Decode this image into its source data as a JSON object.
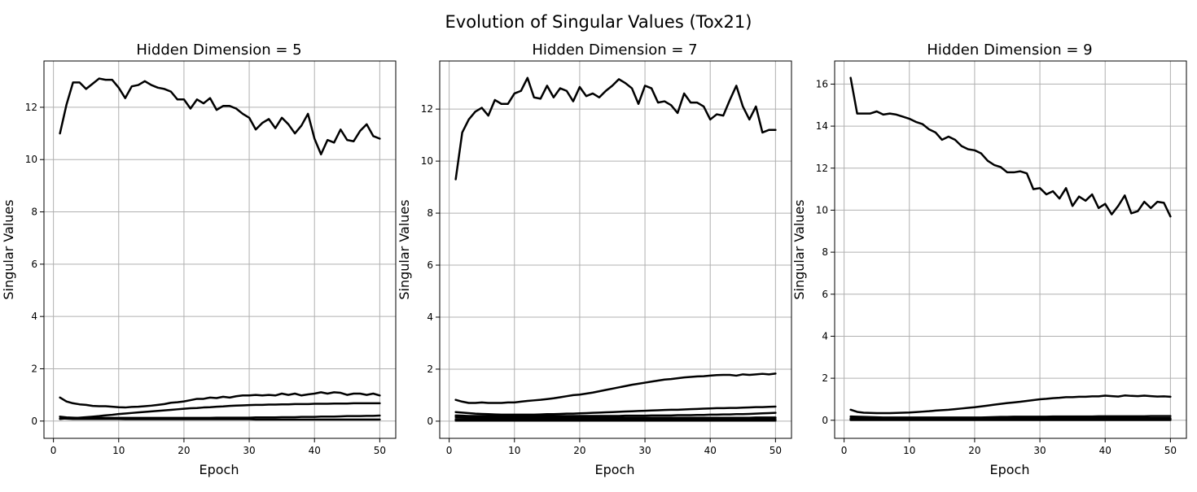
{
  "figure": {
    "title": "Evolution of Singular Values (Tox21)"
  },
  "chart_data": [
    {
      "type": "line",
      "title": "Hidden Dimension = 5",
      "xlabel": "Epoch",
      "ylabel": "Singular Values",
      "xlim": [
        -1.45,
        52.45
      ],
      "ylim": [
        -0.66,
        13.77
      ],
      "xticks": [
        0,
        10,
        20,
        30,
        40,
        50
      ],
      "yticks": [
        0,
        2,
        4,
        6,
        8,
        10,
        12
      ],
      "grid": true,
      "line_color": "#000000",
      "series": [
        {
          "values": [
            11.0,
            12.1,
            12.95,
            12.95,
            12.7,
            12.9,
            13.1,
            13.05,
            13.05,
            12.75,
            12.35,
            12.8,
            12.85,
            13.0,
            12.85,
            12.75,
            12.7,
            12.6,
            12.3,
            12.3,
            11.95,
            12.3,
            12.15,
            12.35,
            11.9,
            12.05,
            12.05,
            11.95,
            11.75,
            11.6,
            11.15,
            11.4,
            11.55,
            11.2,
            11.6,
            11.35,
            11.0,
            11.3,
            11.75,
            10.8,
            10.2,
            10.75,
            10.65,
            11.15,
            10.75,
            10.7,
            11.1,
            11.35,
            10.9,
            10.8
          ]
        },
        {
          "values": [
            0.9,
            0.75,
            0.68,
            0.64,
            0.62,
            0.58,
            0.57,
            0.57,
            0.55,
            0.53,
            0.52,
            0.54,
            0.55,
            0.57,
            0.59,
            0.62,
            0.65,
            0.7,
            0.72,
            0.75,
            0.8,
            0.85,
            0.85,
            0.9,
            0.88,
            0.93,
            0.9,
            0.95,
            0.98,
            0.98,
            1.0,
            0.98,
            1.0,
            0.98,
            1.05,
            1.0,
            1.05,
            0.98,
            1.02,
            1.05,
            1.1,
            1.05,
            1.1,
            1.08,
            1.0,
            1.05,
            1.05,
            1.0,
            1.05,
            0.98
          ]
        },
        {
          "values": [
            0.08,
            0.1,
            0.11,
            0.13,
            0.15,
            0.17,
            0.19,
            0.22,
            0.24,
            0.27,
            0.29,
            0.31,
            0.33,
            0.35,
            0.37,
            0.39,
            0.41,
            0.43,
            0.45,
            0.47,
            0.49,
            0.5,
            0.52,
            0.53,
            0.55,
            0.56,
            0.58,
            0.59,
            0.6,
            0.61,
            0.62,
            0.62,
            0.63,
            0.63,
            0.64,
            0.64,
            0.65,
            0.65,
            0.65,
            0.66,
            0.66,
            0.66,
            0.67,
            0.67,
            0.67,
            0.68,
            0.68,
            0.68,
            0.68,
            0.68
          ]
        },
        {
          "values": [
            0.17,
            0.14,
            0.13,
            0.12,
            0.12,
            0.12,
            0.12,
            0.12,
            0.12,
            0.12,
            0.12,
            0.12,
            0.12,
            0.12,
            0.12,
            0.12,
            0.12,
            0.12,
            0.12,
            0.12,
            0.12,
            0.12,
            0.12,
            0.12,
            0.13,
            0.13,
            0.13,
            0.13,
            0.13,
            0.13,
            0.14,
            0.14,
            0.14,
            0.14,
            0.15,
            0.15,
            0.15,
            0.16,
            0.16,
            0.16,
            0.17,
            0.17,
            0.17,
            0.18,
            0.19,
            0.19,
            0.19,
            0.2,
            0.2,
            0.21
          ]
        },
        {
          "values": [
            0.1,
            0.09,
            0.08,
            0.08,
            0.08,
            0.08,
            0.08,
            0.08,
            0.08,
            0.08,
            0.07,
            0.07,
            0.07,
            0.07,
            0.07,
            0.07,
            0.07,
            0.07,
            0.07,
            0.07,
            0.07,
            0.07,
            0.07,
            0.07,
            0.07,
            0.07,
            0.07,
            0.07,
            0.07,
            0.07,
            0.06,
            0.06,
            0.06,
            0.06,
            0.06,
            0.06,
            0.06,
            0.06,
            0.06,
            0.06,
            0.06,
            0.06,
            0.06,
            0.06,
            0.06,
            0.06,
            0.06,
            0.06,
            0.06,
            0.06
          ]
        }
      ]
    },
    {
      "type": "line",
      "title": "Hidden Dimension = 7",
      "xlabel": "Epoch",
      "ylabel": "Singular Values",
      "xlim": [
        -1.45,
        52.45
      ],
      "ylim": [
        -0.66,
        13.85
      ],
      "xticks": [
        0,
        10,
        20,
        30,
        40,
        50
      ],
      "yticks": [
        0,
        2,
        4,
        6,
        8,
        10,
        12
      ],
      "grid": true,
      "line_color": "#000000",
      "series": [
        {
          "values": [
            9.3,
            11.1,
            11.6,
            11.9,
            12.05,
            11.75,
            12.35,
            12.2,
            12.2,
            12.6,
            12.7,
            13.2,
            12.45,
            12.4,
            12.9,
            12.45,
            12.8,
            12.7,
            12.3,
            12.85,
            12.5,
            12.6,
            12.45,
            12.7,
            12.9,
            13.15,
            13.0,
            12.8,
            12.2,
            12.9,
            12.8,
            12.25,
            12.3,
            12.15,
            11.85,
            12.6,
            12.25,
            12.25,
            12.1,
            11.6,
            11.8,
            11.75,
            12.35,
            12.9,
            12.1,
            11.6,
            12.1,
            11.1,
            11.2,
            11.2
          ]
        },
        {
          "values": [
            0.82,
            0.75,
            0.7,
            0.7,
            0.72,
            0.7,
            0.7,
            0.7,
            0.72,
            0.72,
            0.75,
            0.78,
            0.8,
            0.82,
            0.85,
            0.88,
            0.92,
            0.96,
            1.0,
            1.02,
            1.06,
            1.1,
            1.15,
            1.2,
            1.25,
            1.3,
            1.35,
            1.4,
            1.44,
            1.48,
            1.52,
            1.56,
            1.6,
            1.62,
            1.65,
            1.68,
            1.7,
            1.72,
            1.73,
            1.75,
            1.77,
            1.78,
            1.78,
            1.75,
            1.8,
            1.78,
            1.8,
            1.82,
            1.8,
            1.83
          ]
        },
        {
          "values": [
            0.35,
            0.33,
            0.31,
            0.29,
            0.28,
            0.27,
            0.26,
            0.25,
            0.25,
            0.25,
            0.25,
            0.25,
            0.25,
            0.26,
            0.27,
            0.27,
            0.28,
            0.29,
            0.29,
            0.3,
            0.31,
            0.32,
            0.33,
            0.34,
            0.35,
            0.36,
            0.37,
            0.38,
            0.39,
            0.4,
            0.41,
            0.42,
            0.43,
            0.44,
            0.44,
            0.45,
            0.46,
            0.47,
            0.48,
            0.49,
            0.5,
            0.5,
            0.51,
            0.51,
            0.52,
            0.53,
            0.54,
            0.54,
            0.55,
            0.56
          ]
        },
        {
          "values": [
            0.22,
            0.21,
            0.2,
            0.2,
            0.2,
            0.2,
            0.2,
            0.2,
            0.2,
            0.2,
            0.2,
            0.2,
            0.2,
            0.2,
            0.2,
            0.2,
            0.2,
            0.2,
            0.2,
            0.2,
            0.2,
            0.2,
            0.2,
            0.2,
            0.2,
            0.2,
            0.21,
            0.21,
            0.21,
            0.21,
            0.22,
            0.22,
            0.22,
            0.22,
            0.23,
            0.23,
            0.23,
            0.24,
            0.24,
            0.25,
            0.25,
            0.26,
            0.26,
            0.27,
            0.27,
            0.28,
            0.29,
            0.3,
            0.31,
            0.32
          ]
        },
        {
          "values": [
            0.16,
            0.15,
            0.14,
            0.13,
            0.13,
            0.13,
            0.13,
            0.13,
            0.13,
            0.13,
            0.13,
            0.13,
            0.13,
            0.13,
            0.13,
            0.13,
            0.13,
            0.13,
            0.13,
            0.13,
            0.13,
            0.13,
            0.13,
            0.13,
            0.13,
            0.13,
            0.13,
            0.13,
            0.13,
            0.13,
            0.13,
            0.13,
            0.13,
            0.13,
            0.13,
            0.13,
            0.13,
            0.13,
            0.13,
            0.13,
            0.13,
            0.13,
            0.13,
            0.13,
            0.13,
            0.13,
            0.14,
            0.14,
            0.14,
            0.14
          ]
        },
        {
          "values": [
            0.08,
            0.08,
            0.08,
            0.08,
            0.08,
            0.08,
            0.08,
            0.08,
            0.08,
            0.08,
            0.08,
            0.08,
            0.08,
            0.08,
            0.08,
            0.08,
            0.08,
            0.08,
            0.08,
            0.08,
            0.08,
            0.08,
            0.08,
            0.08,
            0.08,
            0.08,
            0.08,
            0.08,
            0.08,
            0.08,
            0.08,
            0.08,
            0.08,
            0.08,
            0.08,
            0.08,
            0.08,
            0.08,
            0.08,
            0.08,
            0.08,
            0.08,
            0.08,
            0.08,
            0.08,
            0.08,
            0.08,
            0.08,
            0.08,
            0.08
          ]
        },
        {
          "values": [
            0.02,
            0.02,
            0.02,
            0.02,
            0.02,
            0.02,
            0.02,
            0.02,
            0.02,
            0.02,
            0.02,
            0.02,
            0.02,
            0.02,
            0.02,
            0.02,
            0.02,
            0.02,
            0.02,
            0.02,
            0.02,
            0.02,
            0.02,
            0.02,
            0.02,
            0.02,
            0.02,
            0.02,
            0.02,
            0.02,
            0.02,
            0.02,
            0.02,
            0.02,
            0.02,
            0.02,
            0.02,
            0.02,
            0.02,
            0.02,
            0.02,
            0.02,
            0.02,
            0.02,
            0.02,
            0.02,
            0.02,
            0.02,
            0.02,
            0.02
          ]
        }
      ]
    },
    {
      "type": "line",
      "title": "Hidden Dimension = 9",
      "xlabel": "Epoch",
      "ylabel": "Singular Values",
      "xlim": [
        -1.45,
        52.45
      ],
      "ylim": [
        -0.86,
        17.1
      ],
      "xticks": [
        0,
        10,
        20,
        30,
        40,
        50
      ],
      "yticks": [
        0,
        2,
        4,
        6,
        8,
        10,
        12,
        14,
        16
      ],
      "grid": true,
      "line_color": "#000000",
      "series": [
        {
          "values": [
            16.3,
            14.6,
            14.6,
            14.6,
            14.7,
            14.55,
            14.6,
            14.55,
            14.45,
            14.35,
            14.2,
            14.1,
            13.85,
            13.7,
            13.35,
            13.5,
            13.35,
            13.05,
            12.9,
            12.85,
            12.7,
            12.35,
            12.15,
            12.05,
            11.8,
            11.8,
            11.85,
            11.75,
            11.0,
            11.05,
            10.75,
            10.9,
            10.55,
            11.05,
            10.2,
            10.65,
            10.45,
            10.75,
            10.1,
            10.3,
            9.8,
            10.2,
            10.7,
            9.85,
            9.95,
            10.4,
            10.1,
            10.4,
            10.35,
            9.7
          ]
        },
        {
          "values": [
            0.5,
            0.4,
            0.36,
            0.35,
            0.34,
            0.34,
            0.34,
            0.35,
            0.36,
            0.37,
            0.39,
            0.41,
            0.43,
            0.46,
            0.48,
            0.5,
            0.53,
            0.56,
            0.59,
            0.62,
            0.66,
            0.7,
            0.74,
            0.78,
            0.82,
            0.85,
            0.88,
            0.92,
            0.96,
            1.0,
            1.02,
            1.05,
            1.07,
            1.1,
            1.1,
            1.12,
            1.12,
            1.14,
            1.14,
            1.17,
            1.15,
            1.13,
            1.18,
            1.16,
            1.15,
            1.17,
            1.15,
            1.13,
            1.14,
            1.12
          ]
        },
        {
          "values": [
            0.18,
            0.17,
            0.16,
            0.15,
            0.14,
            0.13,
            0.13,
            0.13,
            0.13,
            0.13,
            0.13,
            0.13,
            0.13,
            0.13,
            0.13,
            0.13,
            0.13,
            0.13,
            0.13,
            0.13,
            0.13,
            0.14,
            0.15,
            0.16,
            0.16,
            0.17,
            0.17,
            0.17,
            0.17,
            0.17,
            0.17,
            0.18,
            0.18,
            0.18,
            0.18,
            0.18,
            0.18,
            0.18,
            0.19,
            0.19,
            0.19,
            0.19,
            0.19,
            0.19,
            0.19,
            0.19,
            0.2,
            0.2,
            0.2,
            0.2
          ]
        },
        {
          "values": [
            0.1,
            0.1,
            0.1,
            0.1,
            0.1,
            0.1,
            0.1,
            0.1,
            0.1,
            0.1,
            0.1,
            0.1,
            0.1,
            0.1,
            0.1,
            0.1,
            0.1,
            0.1,
            0.1,
            0.1,
            0.1,
            0.1,
            0.1,
            0.1,
            0.1,
            0.1,
            0.1,
            0.1,
            0.1,
            0.1,
            0.1,
            0.1,
            0.1,
            0.1,
            0.1,
            0.1,
            0.1,
            0.1,
            0.1,
            0.1,
            0.1,
            0.1,
            0.1,
            0.1,
            0.1,
            0.1,
            0.1,
            0.1,
            0.1,
            0.1
          ]
        },
        {
          "values": [
            0.06,
            0.06,
            0.06,
            0.06,
            0.06,
            0.06,
            0.06,
            0.06,
            0.06,
            0.06,
            0.06,
            0.06,
            0.06,
            0.06,
            0.06,
            0.06,
            0.06,
            0.06,
            0.06,
            0.06,
            0.06,
            0.06,
            0.06,
            0.06,
            0.06,
            0.06,
            0.06,
            0.06,
            0.06,
            0.06,
            0.06,
            0.06,
            0.06,
            0.06,
            0.06,
            0.06,
            0.06,
            0.06,
            0.06,
            0.06,
            0.06,
            0.06,
            0.06,
            0.06,
            0.06,
            0.06,
            0.06,
            0.06,
            0.06,
            0.06
          ]
        },
        {
          "values": [
            0.03,
            0.03,
            0.03,
            0.03,
            0.03,
            0.03,
            0.03,
            0.03,
            0.03,
            0.03,
            0.03,
            0.03,
            0.03,
            0.03,
            0.03,
            0.03,
            0.03,
            0.03,
            0.03,
            0.03,
            0.03,
            0.03,
            0.03,
            0.03,
            0.03,
            0.03,
            0.03,
            0.03,
            0.03,
            0.03,
            0.03,
            0.03,
            0.03,
            0.03,
            0.03,
            0.03,
            0.03,
            0.03,
            0.03,
            0.03,
            0.03,
            0.03,
            0.03,
            0.03,
            0.03,
            0.03,
            0.03,
            0.03,
            0.03,
            0.03
          ]
        },
        {
          "values": [
            0.01,
            0.01,
            0.01,
            0.01,
            0.01,
            0.01,
            0.01,
            0.01,
            0.01,
            0.01,
            0.01,
            0.01,
            0.01,
            0.01,
            0.01,
            0.01,
            0.01,
            0.01,
            0.01,
            0.01,
            0.01,
            0.01,
            0.01,
            0.01,
            0.01,
            0.01,
            0.01,
            0.01,
            0.01,
            0.01,
            0.01,
            0.01,
            0.01,
            0.01,
            0.01,
            0.01,
            0.01,
            0.01,
            0.01,
            0.01,
            0.01,
            0.01,
            0.01,
            0.01,
            0.01,
            0.01,
            0.01,
            0.01,
            0.01,
            0.01
          ]
        }
      ]
    }
  ]
}
